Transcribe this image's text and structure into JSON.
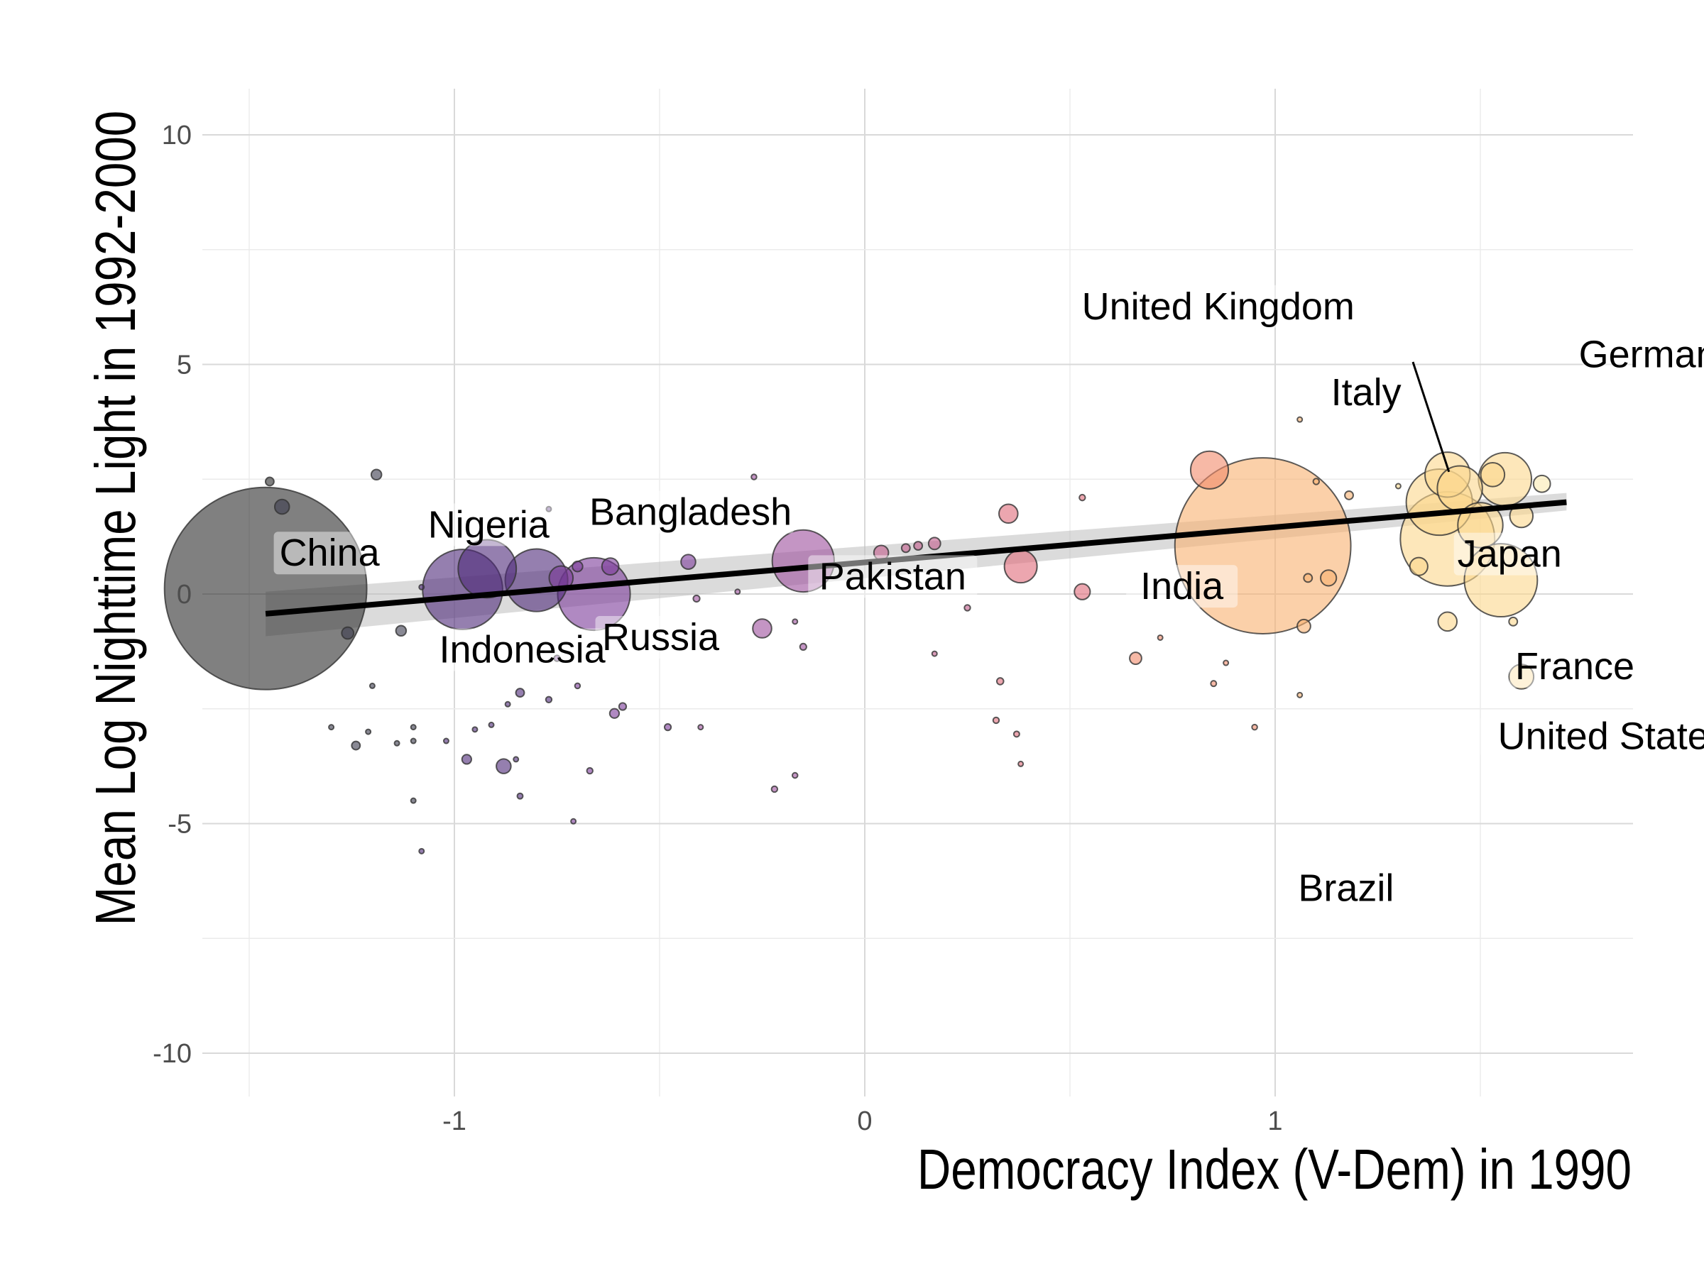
{
  "chart_data": {
    "type": "scatter",
    "title": "",
    "xlabel": "Democracy Index (V-Dem) in 1990",
    "ylabel": "Mean Log Nighttime Light in 1992-2000",
    "xlim": [
      -1.6,
      1.8
    ],
    "ylim": [
      -11,
      11
    ],
    "x_ticks": [
      -1,
      0,
      1
    ],
    "x_tick_labels": [
      "-1",
      "0",
      "1"
    ],
    "y_ticks": [
      -10,
      -5,
      0,
      5,
      10
    ],
    "y_tick_labels": [
      "-10",
      "-5",
      "0",
      "5",
      "10"
    ],
    "grid": true,
    "legend": "none",
    "size_encoding": "population",
    "color_encoding": "democracy index (magma palette: dark gray → purple → pink → peach → light yellow)",
    "colors": {
      "trend_line": "#000000",
      "confidence_band": "#bdbdbd",
      "point_outline": "#333333",
      "grid": "#d9d9d9",
      "palette": [
        "#2b2b2b",
        "#3b3b4d",
        "#4f2a7a",
        "#7b3a9a",
        "#9c4f9c",
        "#c25a8a",
        "#e06a7a",
        "#f28a6a",
        "#f8b070",
        "#fbd78c",
        "#fcebb0"
      ]
    },
    "trend_line": {
      "x": [
        -1.46,
        1.71
      ],
      "y": [
        -0.43,
        2.0
      ],
      "ci_lower": [
        -0.92,
        1.82
      ],
      "ci_upper": [
        0.05,
        2.2
      ]
    },
    "labeled_points": [
      {
        "label": "China",
        "x": -1.46,
        "y": 0.12,
        "pop": 1150
      },
      {
        "label": "Nigeria",
        "x": -0.92,
        "y": 0.55,
        "pop": 95
      },
      {
        "label": "Indonesia",
        "x": -0.98,
        "y": 0.1,
        "pop": 180
      },
      {
        "label": "Bangladesh",
        "x": -0.8,
        "y": 0.3,
        "pop": 110
      },
      {
        "label": "Russia",
        "x": -0.66,
        "y": 0.0,
        "pop": 148
      },
      {
        "label": "Pakistan",
        "x": -0.15,
        "y": 0.72,
        "pop": 108
      },
      {
        "label": "India",
        "x": 0.97,
        "y": 1.05,
        "pop": 870
      },
      {
        "label": "United Kingdom",
        "x": 1.42,
        "y": 2.6,
        "pop": 57
      },
      {
        "label": "Italy",
        "x": 1.45,
        "y": 2.3,
        "pop": 57
      },
      {
        "label": "Germany",
        "x": 1.56,
        "y": 2.5,
        "pop": 79
      },
      {
        "label": "Japan",
        "x": 1.4,
        "y": 2.0,
        "pop": 123
      },
      {
        "label": "France",
        "x": 1.5,
        "y": 1.5,
        "pop": 57
      },
      {
        "label": "United States",
        "x": 1.42,
        "y": 1.2,
        "pop": 250
      },
      {
        "label": "Brazil",
        "x": 1.55,
        "y": 0.3,
        "pop": 150
      }
    ],
    "other_points": [
      {
        "x": -1.45,
        "y": 2.45,
        "pop": 2
      },
      {
        "x": -1.42,
        "y": 1.9,
        "pop": 6
      },
      {
        "x": -1.19,
        "y": 2.6,
        "pop": 3
      },
      {
        "x": -1.26,
        "y": -0.85,
        "pop": 4
      },
      {
        "x": -1.13,
        "y": -0.8,
        "pop": 3
      },
      {
        "x": -1.24,
        "y": -3.3,
        "pop": 2
      },
      {
        "x": -1.3,
        "y": -2.9,
        "pop": 0.2
      },
      {
        "x": -1.21,
        "y": -3.0,
        "pop": 0.4
      },
      {
        "x": -1.2,
        "y": -2.0,
        "pop": 0.3
      },
      {
        "x": -1.1,
        "y": -2.9,
        "pop": 0.4
      },
      {
        "x": -1.1,
        "y": -3.2,
        "pop": 0.5
      },
      {
        "x": -1.14,
        "y": -3.25,
        "pop": 0.2
      },
      {
        "x": -1.1,
        "y": -4.5,
        "pop": 0.4
      },
      {
        "x": -1.08,
        "y": -5.6,
        "pop": 0.4
      },
      {
        "x": -1.08,
        "y": 0.15,
        "pop": 0.3
      },
      {
        "x": -0.97,
        "y": -3.6,
        "pop": 2.5
      },
      {
        "x": -1.02,
        "y": -3.2,
        "pop": 0.3
      },
      {
        "x": -0.95,
        "y": -2.95,
        "pop": 0.6
      },
      {
        "x": -0.91,
        "y": -2.85,
        "pop": 0.7
      },
      {
        "x": -0.88,
        "y": -3.75,
        "pop": 6
      },
      {
        "x": -0.84,
        "y": -2.15,
        "pop": 2
      },
      {
        "x": -0.87,
        "y": -2.4,
        "pop": 0.2
      },
      {
        "x": -0.85,
        "y": -3.6,
        "pop": 0.3
      },
      {
        "x": -0.84,
        "y": -4.4,
        "pop": 0.9
      },
      {
        "x": -0.77,
        "y": -2.3,
        "pop": 1
      },
      {
        "x": -0.75,
        "y": -1.4,
        "pop": 1
      },
      {
        "x": -0.7,
        "y": -2.0,
        "pop": 0.8
      },
      {
        "x": -0.67,
        "y": -3.85,
        "pop": 1
      },
      {
        "x": -0.71,
        "y": -4.95,
        "pop": 0.4
      },
      {
        "x": -0.77,
        "y": 1.85,
        "pop": 0.2
      },
      {
        "x": -0.74,
        "y": 0.35,
        "pop": 16
      },
      {
        "x": -0.7,
        "y": 0.6,
        "pop": 3
      },
      {
        "x": -0.62,
        "y": 0.6,
        "pop": 8
      },
      {
        "x": -0.61,
        "y": -2.6,
        "pop": 2.5
      },
      {
        "x": -0.59,
        "y": -2.45,
        "pop": 1.5
      },
      {
        "x": -0.48,
        "y": -2.9,
        "pop": 1.2
      },
      {
        "x": -0.43,
        "y": 0.7,
        "pop": 6
      },
      {
        "x": -0.41,
        "y": -0.1,
        "pop": 1.2
      },
      {
        "x": -0.4,
        "y": -2.9,
        "pop": 0.3
      },
      {
        "x": -0.27,
        "y": 2.55,
        "pop": 0.8
      },
      {
        "x": -0.31,
        "y": 0.05,
        "pop": 0.2
      },
      {
        "x": -0.25,
        "y": -0.75,
        "pop": 10
      },
      {
        "x": -0.17,
        "y": -0.6,
        "pop": 0.3
      },
      {
        "x": -0.15,
        "y": -1.15,
        "pop": 1.2
      },
      {
        "x": -0.22,
        "y": -4.25,
        "pop": 1
      },
      {
        "x": -0.17,
        "y": -3.95,
        "pop": 0.8
      },
      {
        "x": 0.04,
        "y": 0.9,
        "pop": 6
      },
      {
        "x": 0.1,
        "y": 1.0,
        "pop": 2
      },
      {
        "x": 0.13,
        "y": 1.05,
        "pop": 2
      },
      {
        "x": 0.17,
        "y": 1.1,
        "pop": 4
      },
      {
        "x": 0.17,
        "y": -1.3,
        "pop": 0.3
      },
      {
        "x": 0.25,
        "y": -0.3,
        "pop": 1
      },
      {
        "x": 0.35,
        "y": 1.75,
        "pop": 10
      },
      {
        "x": 0.38,
        "y": 0.6,
        "pop": 30
      },
      {
        "x": 0.32,
        "y": -2.75,
        "pop": 1
      },
      {
        "x": 0.33,
        "y": -1.9,
        "pop": 1.3
      },
      {
        "x": 0.37,
        "y": -3.05,
        "pop": 0.9
      },
      {
        "x": 0.38,
        "y": -3.7,
        "pop": 0.2
      },
      {
        "x": 0.53,
        "y": 2.1,
        "pop": 1
      },
      {
        "x": 0.53,
        "y": 0.05,
        "pop": 7
      },
      {
        "x": 0.66,
        "y": -1.4,
        "pop": 4
      },
      {
        "x": 0.72,
        "y": -0.95,
        "pop": 0.3
      },
      {
        "x": 0.84,
        "y": 2.7,
        "pop": 40
      },
      {
        "x": 0.85,
        "y": -1.95,
        "pop": 0.9
      },
      {
        "x": 0.88,
        "y": -1.5,
        "pop": 0.2
      },
      {
        "x": 0.95,
        "y": -2.9,
        "pop": 0.8
      },
      {
        "x": 1.06,
        "y": 3.8,
        "pop": 0.6
      },
      {
        "x": 1.08,
        "y": 0.35,
        "pop": 2
      },
      {
        "x": 1.07,
        "y": -0.7,
        "pop": 5
      },
      {
        "x": 1.13,
        "y": 0.35,
        "pop": 7
      },
      {
        "x": 1.06,
        "y": -2.2,
        "pop": 0.3
      },
      {
        "x": 1.1,
        "y": 2.45,
        "pop": 1
      },
      {
        "x": 1.18,
        "y": 2.15,
        "pop": 2
      },
      {
        "x": 1.3,
        "y": 2.35,
        "pop": 0.5
      },
      {
        "x": 1.35,
        "y": 0.6,
        "pop": 9
      },
      {
        "x": 1.42,
        "y": -0.6,
        "pop": 10
      },
      {
        "x": 1.6,
        "y": -1.8,
        "pop": 17
      },
      {
        "x": 1.53,
        "y": 2.6,
        "pop": 16
      },
      {
        "x": 1.6,
        "y": 1.7,
        "pop": 15
      },
      {
        "x": 1.58,
        "y": -0.6,
        "pop": 2
      },
      {
        "x": 1.65,
        "y": 2.4,
        "pop": 8
      }
    ]
  }
}
